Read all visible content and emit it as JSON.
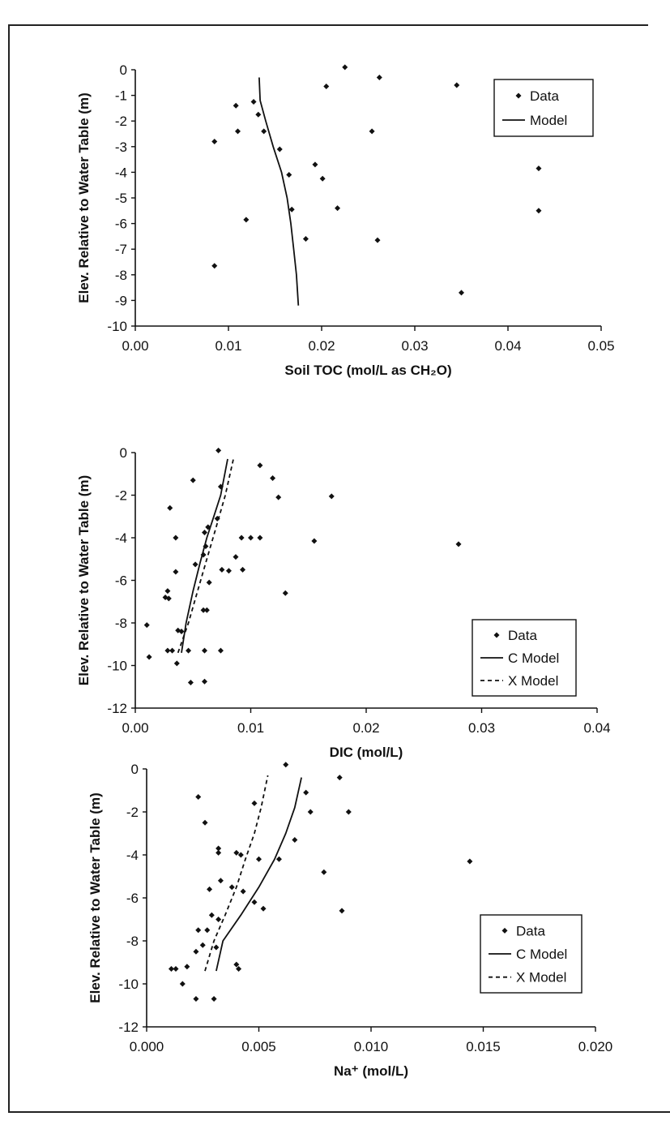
{
  "chart_data": [
    {
      "type": "scatter",
      "xlabel": "Soil TOC (mol/L as CH₂O)",
      "ylabel": "Elev. Relative to Water Table (m)",
      "xlim": [
        0,
        0.05
      ],
      "ylim": [
        -10,
        0
      ],
      "xticks": [
        "0.00",
        "0.01",
        "0.02",
        "0.03",
        "0.04",
        "0.05"
      ],
      "yticks": [
        "0",
        "-1",
        "-2",
        "-3",
        "-4",
        "-5",
        "-6",
        "-7",
        "-8",
        "-9",
        "-10"
      ],
      "legend_position": "top-right",
      "series": [
        {
          "name": "Data",
          "style": "markers",
          "points": [
            [
              0.0225,
              0.1
            ],
            [
              0.0205,
              -0.65
            ],
            [
              0.0262,
              -0.3
            ],
            [
              0.0345,
              -0.6
            ],
            [
              0.0127,
              -1.25
            ],
            [
              0.0108,
              -1.4
            ],
            [
              0.0132,
              -1.75
            ],
            [
              0.0085,
              -2.8
            ],
            [
              0.011,
              -2.4
            ],
            [
              0.0138,
              -2.4
            ],
            [
              0.0254,
              -2.4
            ],
            [
              0.0155,
              -3.1
            ],
            [
              0.0193,
              -3.7
            ],
            [
              0.0165,
              -4.1
            ],
            [
              0.0201,
              -4.25
            ],
            [
              0.0433,
              -3.85
            ],
            [
              0.0168,
              -5.45
            ],
            [
              0.0217,
              -5.4
            ],
            [
              0.0433,
              -5.5
            ],
            [
              0.0119,
              -5.85
            ],
            [
              0.0183,
              -6.6
            ],
            [
              0.026,
              -6.65
            ],
            [
              0.0085,
              -7.65
            ],
            [
              0.035,
              -8.7
            ]
          ]
        },
        {
          "name": "Model",
          "style": "solid",
          "points": [
            [
              0.0133,
              -0.3
            ],
            [
              0.0134,
              -1.2
            ],
            [
              0.014,
              -2.0
            ],
            [
              0.0148,
              -3.0
            ],
            [
              0.0157,
              -4.0
            ],
            [
              0.0163,
              -5.0
            ],
            [
              0.0167,
              -6.0
            ],
            [
              0.017,
              -7.0
            ],
            [
              0.0173,
              -8.0
            ],
            [
              0.0175,
              -9.2
            ]
          ]
        }
      ]
    },
    {
      "type": "scatter",
      "xlabel": "DIC (mol/L)",
      "ylabel": "Elev. Relative to Water Table (m)",
      "xlim": [
        0,
        0.04
      ],
      "ylim": [
        -12,
        0
      ],
      "xticks": [
        "0.00",
        "0.01",
        "0.02",
        "0.03",
        "0.04"
      ],
      "yticks": [
        "0",
        "-2",
        "-4",
        "-6",
        "-8",
        "-10",
        "-12"
      ],
      "legend_position": "bottom-right",
      "series": [
        {
          "name": "Data",
          "style": "markers",
          "points": [
            [
              0.0072,
              0.1
            ],
            [
              0.0108,
              -0.6
            ],
            [
              0.005,
              -1.3
            ],
            [
              0.0074,
              -1.6
            ],
            [
              0.0119,
              -1.2
            ],
            [
              0.0124,
              -2.1
            ],
            [
              0.017,
              -2.05
            ],
            [
              0.003,
              -2.6
            ],
            [
              0.0071,
              -3.1
            ],
            [
              0.0063,
              -3.5
            ],
            [
              0.006,
              -3.75
            ],
            [
              0.0035,
              -4.0
            ],
            [
              0.0092,
              -4.0
            ],
            [
              0.01,
              -4.0
            ],
            [
              0.0108,
              -4.0
            ],
            [
              0.0155,
              -4.15
            ],
            [
              0.028,
              -4.3
            ],
            [
              0.0061,
              -4.4
            ],
            [
              0.0059,
              -4.8
            ],
            [
              0.0087,
              -4.9
            ],
            [
              0.0052,
              -5.25
            ],
            [
              0.0035,
              -5.6
            ],
            [
              0.0075,
              -5.5
            ],
            [
              0.0081,
              -5.55
            ],
            [
              0.0093,
              -5.5
            ],
            [
              0.0064,
              -6.1
            ],
            [
              0.0028,
              -6.5
            ],
            [
              0.0026,
              -6.8
            ],
            [
              0.0029,
              -6.85
            ],
            [
              0.013,
              -6.6
            ],
            [
              0.0059,
              -7.4
            ],
            [
              0.0062,
              -7.4
            ],
            [
              0.001,
              -8.1
            ],
            [
              0.0037,
              -8.35
            ],
            [
              0.004,
              -8.4
            ],
            [
              0.0028,
              -9.3
            ],
            [
              0.0032,
              -9.3
            ],
            [
              0.0046,
              -9.3
            ],
            [
              0.006,
              -9.3
            ],
            [
              0.0074,
              -9.3
            ],
            [
              0.0012,
              -9.6
            ],
            [
              0.0036,
              -9.9
            ],
            [
              0.0048,
              -10.8
            ],
            [
              0.006,
              -10.75
            ]
          ]
        },
        {
          "name": "C Model",
          "style": "solid",
          "points": [
            [
              0.004,
              -9.4
            ],
            [
              0.0044,
              -8.0
            ],
            [
              0.005,
              -6.5
            ],
            [
              0.0056,
              -5.2
            ],
            [
              0.0062,
              -4.0
            ],
            [
              0.0068,
              -3.0
            ],
            [
              0.0074,
              -2.0
            ],
            [
              0.008,
              -0.3
            ]
          ]
        },
        {
          "name": "X Model",
          "style": "dashed",
          "points": [
            [
              0.0037,
              -9.4
            ],
            [
              0.0046,
              -8.0
            ],
            [
              0.0054,
              -6.5
            ],
            [
              0.0062,
              -5.0
            ],
            [
              0.007,
              -3.5
            ],
            [
              0.0078,
              -2.0
            ],
            [
              0.0085,
              -0.3
            ]
          ]
        }
      ]
    },
    {
      "type": "scatter",
      "xlabel": "Na⁺ (mol/L)",
      "ylabel": "Elev. Relative to Water Table (m)",
      "xlim": [
        0,
        0.02
      ],
      "ylim": [
        -12,
        0
      ],
      "xticks": [
        "0.000",
        "0.005",
        "0.010",
        "0.015",
        "0.020"
      ],
      "yticks": [
        "0",
        "-2",
        "-4",
        "-6",
        "-8",
        "-10",
        "-12"
      ],
      "legend_position": "bottom-right",
      "series": [
        {
          "name": "Data",
          "style": "markers",
          "points": [
            [
              0.0062,
              0.2
            ],
            [
              0.0086,
              -0.4
            ],
            [
              0.0071,
              -1.1
            ],
            [
              0.0023,
              -1.3
            ],
            [
              0.0048,
              -1.6
            ],
            [
              0.0073,
              -2.0
            ],
            [
              0.009,
              -2.0
            ],
            [
              0.0026,
              -2.5
            ],
            [
              0.0066,
              -3.3
            ],
            [
              0.0032,
              -3.7
            ],
            [
              0.0032,
              -3.9
            ],
            [
              0.004,
              -3.9
            ],
            [
              0.0042,
              -4.0
            ],
            [
              0.005,
              -4.2
            ],
            [
              0.0059,
              -4.2
            ],
            [
              0.0144,
              -4.3
            ],
            [
              0.0079,
              -4.8
            ],
            [
              0.0033,
              -5.2
            ],
            [
              0.0038,
              -5.5
            ],
            [
              0.0028,
              -5.6
            ],
            [
              0.0043,
              -5.7
            ],
            [
              0.0048,
              -6.2
            ],
            [
              0.0052,
              -6.5
            ],
            [
              0.0087,
              -6.6
            ],
            [
              0.0029,
              -6.8
            ],
            [
              0.0032,
              -7.0
            ],
            [
              0.0023,
              -7.5
            ],
            [
              0.0027,
              -7.5
            ],
            [
              0.0025,
              -8.2
            ],
            [
              0.0031,
              -8.3
            ],
            [
              0.0022,
              -8.5
            ],
            [
              0.004,
              -9.1
            ],
            [
              0.0041,
              -9.3
            ],
            [
              0.0011,
              -9.3
            ],
            [
              0.0013,
              -9.3
            ],
            [
              0.0018,
              -9.2
            ],
            [
              0.0016,
              -10.0
            ],
            [
              0.0022,
              -10.7
            ],
            [
              0.003,
              -10.7
            ]
          ]
        },
        {
          "name": "C Model",
          "style": "solid",
          "points": [
            [
              0.0031,
              -9.4
            ],
            [
              0.0034,
              -8.0
            ],
            [
              0.0042,
              -6.8
            ],
            [
              0.005,
              -5.5
            ],
            [
              0.0057,
              -4.2
            ],
            [
              0.0062,
              -3.0
            ],
            [
              0.0066,
              -1.8
            ],
            [
              0.0069,
              -0.4
            ]
          ]
        },
        {
          "name": "X Model",
          "style": "dashed",
          "points": [
            [
              0.0026,
              -9.4
            ],
            [
              0.003,
              -8.0
            ],
            [
              0.0035,
              -6.8
            ],
            [
              0.004,
              -5.5
            ],
            [
              0.0044,
              -4.2
            ],
            [
              0.0048,
              -3.0
            ],
            [
              0.0051,
              -1.8
            ],
            [
              0.0054,
              -0.3
            ]
          ]
        }
      ]
    }
  ]
}
